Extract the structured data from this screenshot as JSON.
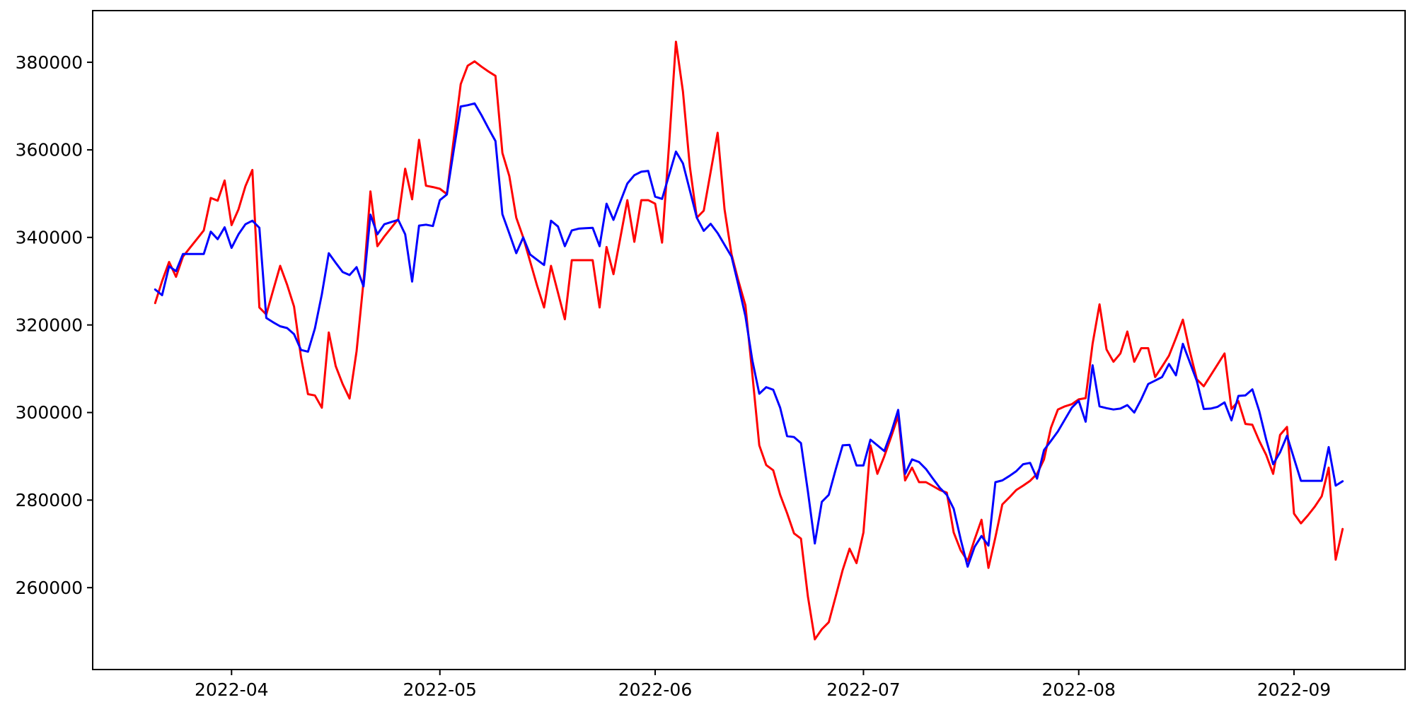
{
  "chart_data": {
    "type": "line",
    "title": "",
    "xlabel": "",
    "ylabel": "",
    "grid": false,
    "legend": null,
    "background": "#ffffff",
    "axis_color": "#000000",
    "x_start_date": "2022-03-21",
    "frequency": "daily",
    "xlim": [
      "2022-03-12",
      "2022-09-17"
    ],
    "ylim": [
      241300,
      391800
    ],
    "y_ticks": [
      260000,
      280000,
      300000,
      320000,
      340000,
      360000,
      380000
    ],
    "x_ticks": [
      {
        "date": "2022-04-01",
        "label": "2022-04"
      },
      {
        "date": "2022-05-01",
        "label": "2022-05"
      },
      {
        "date": "2022-06-01",
        "label": "2022-06"
      },
      {
        "date": "2022-07-01",
        "label": "2022-07"
      },
      {
        "date": "2022-08-01",
        "label": "2022-08"
      },
      {
        "date": "2022-09-01",
        "label": "2022-09"
      }
    ],
    "series": [
      {
        "name": "red-line",
        "color": "#ff0000",
        "line_width": 3,
        "values": [
          325000,
          330000,
          334400,
          331000,
          335600,
          337600,
          339600,
          341600,
          349000,
          348400,
          353000,
          342800,
          346400,
          351700,
          355400,
          324000,
          322400,
          328000,
          333500,
          329200,
          324200,
          312700,
          304200,
          303900,
          301100,
          318300,
          310600,
          306500,
          303200,
          314000,
          329900,
          350500,
          338000,
          340200,
          342200,
          344200,
          355700,
          348700,
          362300,
          351800,
          351500,
          351100,
          349900,
          362500,
          375000,
          379200,
          380200,
          379000,
          377900,
          376900,
          359300,
          354000,
          344500,
          340000,
          334500,
          329000,
          324000,
          333500,
          327400,
          321300,
          334800,
          334800,
          334800,
          334800,
          324000,
          337800,
          331600,
          340000,
          348500,
          339000,
          348500,
          348500,
          347700,
          338800,
          361000,
          384700,
          373300,
          356100,
          344500,
          346100,
          355000,
          363900,
          346400,
          336100,
          330000,
          324500,
          308700,
          292500,
          288000,
          286800,
          281200,
          277000,
          272400,
          271200,
          258000,
          248200,
          250500,
          252100,
          258000,
          264000,
          268900,
          265600,
          272600,
          292500,
          286000,
          290000,
          294500,
          299200,
          284500,
          287400,
          284100,
          284100,
          283200,
          282300,
          281700,
          272600,
          268500,
          266100,
          271000,
          275500,
          264500,
          271500,
          279000,
          280600,
          282300,
          283300,
          284400,
          286000,
          289300,
          296500,
          300700,
          301400,
          301900,
          303000,
          303300,
          315700,
          324700,
          314400,
          311600,
          313500,
          318500,
          311600,
          314700,
          314700,
          308100,
          310500,
          313000,
          317000,
          321200,
          314000,
          307600,
          306000,
          308500,
          311000,
          313500,
          300800,
          302600,
          297400,
          297200,
          293500,
          290300,
          286000,
          294900,
          296700,
          276900,
          274700,
          276500,
          278500,
          280900,
          287400,
          266400,
          273400
        ]
      },
      {
        "name": "blue-line",
        "color": "#0000ff",
        "line_width": 3,
        "values": [
          328100,
          326800,
          333400,
          332300,
          336200,
          336200,
          336200,
          336200,
          341300,
          339600,
          342300,
          337600,
          340700,
          343000,
          343800,
          342200,
          321600,
          320600,
          319700,
          319300,
          317900,
          314300,
          313900,
          319200,
          327000,
          336400,
          334200,
          332100,
          331400,
          333200,
          328800,
          345200,
          340700,
          343000,
          343500,
          344000,
          340700,
          329900,
          342700,
          342900,
          342600,
          348500,
          349800,
          360000,
          369900,
          370200,
          370600,
          367900,
          364900,
          362000,
          345300,
          340900,
          336400,
          340000,
          336100,
          334900,
          333700,
          343800,
          342500,
          338000,
          341600,
          342000,
          342100,
          342200,
          338000,
          347700,
          344000,
          348200,
          352300,
          354200,
          355000,
          355200,
          349300,
          348800,
          354200,
          359600,
          356900,
          350700,
          344500,
          341500,
          343100,
          341000,
          338300,
          335600,
          329000,
          322000,
          311900,
          304300,
          305800,
          305200,
          301100,
          294600,
          294400,
          293000,
          282000,
          270100,
          279600,
          281200,
          287000,
          292500,
          292600,
          287900,
          287900,
          293800,
          292500,
          291200,
          295500,
          300600,
          286000,
          289300,
          288700,
          287100,
          284900,
          282800,
          281200,
          278000,
          271000,
          264800,
          269300,
          271800,
          269600,
          284100,
          284500,
          285500,
          286600,
          288200,
          288500,
          284900,
          291400,
          293500,
          295700,
          298400,
          301100,
          302700,
          297900,
          310800,
          301400,
          301000,
          300700,
          300900,
          301700,
          300000,
          303000,
          306500,
          307300,
          308100,
          311100,
          308500,
          315700,
          311500,
          307200,
          300800,
          300900,
          301300,
          302300,
          298200,
          303800,
          303900,
          305300,
          300300,
          293800,
          288200,
          290900,
          294700,
          289500,
          284400,
          284400,
          284400,
          284400,
          292100,
          283300,
          284300
        ]
      }
    ]
  }
}
